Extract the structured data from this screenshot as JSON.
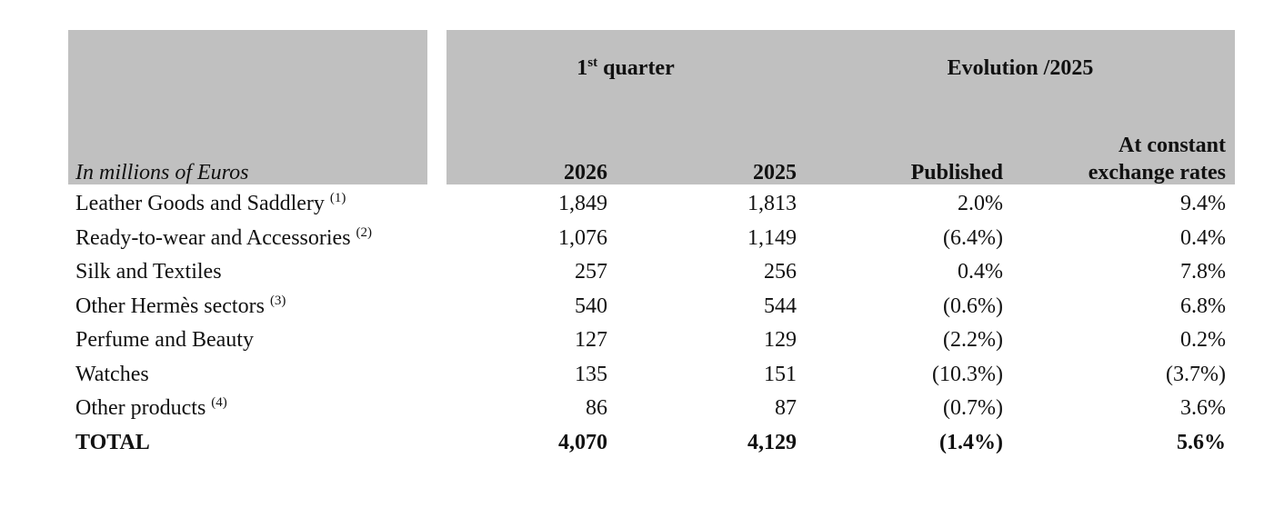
{
  "header": {
    "unit_label": "In millions of Euros",
    "quarter": {
      "number": "1",
      "sup": "st",
      "text": "quarter"
    },
    "evolution": "Evolution /2025",
    "columns": [
      "2026",
      "2025",
      "Published",
      "At constant exchange rates"
    ]
  },
  "table": {
    "rows": [
      {
        "label": "Leather Goods and Saddlery",
        "note": "(1)",
        "cells": [
          "1,849",
          "1,813",
          "2.0%",
          "9.4%"
        ]
      },
      {
        "label": "Ready-to-wear and Accessories",
        "note": "(2)",
        "cells": [
          "1,076",
          "1,149",
          "(6.4%)",
          "0.4%"
        ]
      },
      {
        "label": "Silk and Textiles",
        "cells": [
          "257",
          "256",
          "0.4%",
          "7.8%"
        ]
      },
      {
        "label": "Other Hermès sectors",
        "note": "(3)",
        "cells": [
          "540",
          "544",
          "(0.6%)",
          "6.8%"
        ]
      },
      {
        "label": "Perfume and Beauty",
        "cells": [
          "127",
          "129",
          "(2.2%)",
          "0.2%"
        ]
      },
      {
        "label": "Watches",
        "cells": [
          "135",
          "151",
          "(10.3%)",
          "(3.7%)"
        ]
      },
      {
        "label": "Other products",
        "note": "(4)",
        "cells": [
          "86",
          "87",
          "(0.7%)",
          "3.6%"
        ]
      },
      {
        "label": "TOTAL",
        "cells": [
          "4,070",
          "4,129",
          "(1.4%)",
          "5.6%"
        ]
      }
    ]
  }
}
